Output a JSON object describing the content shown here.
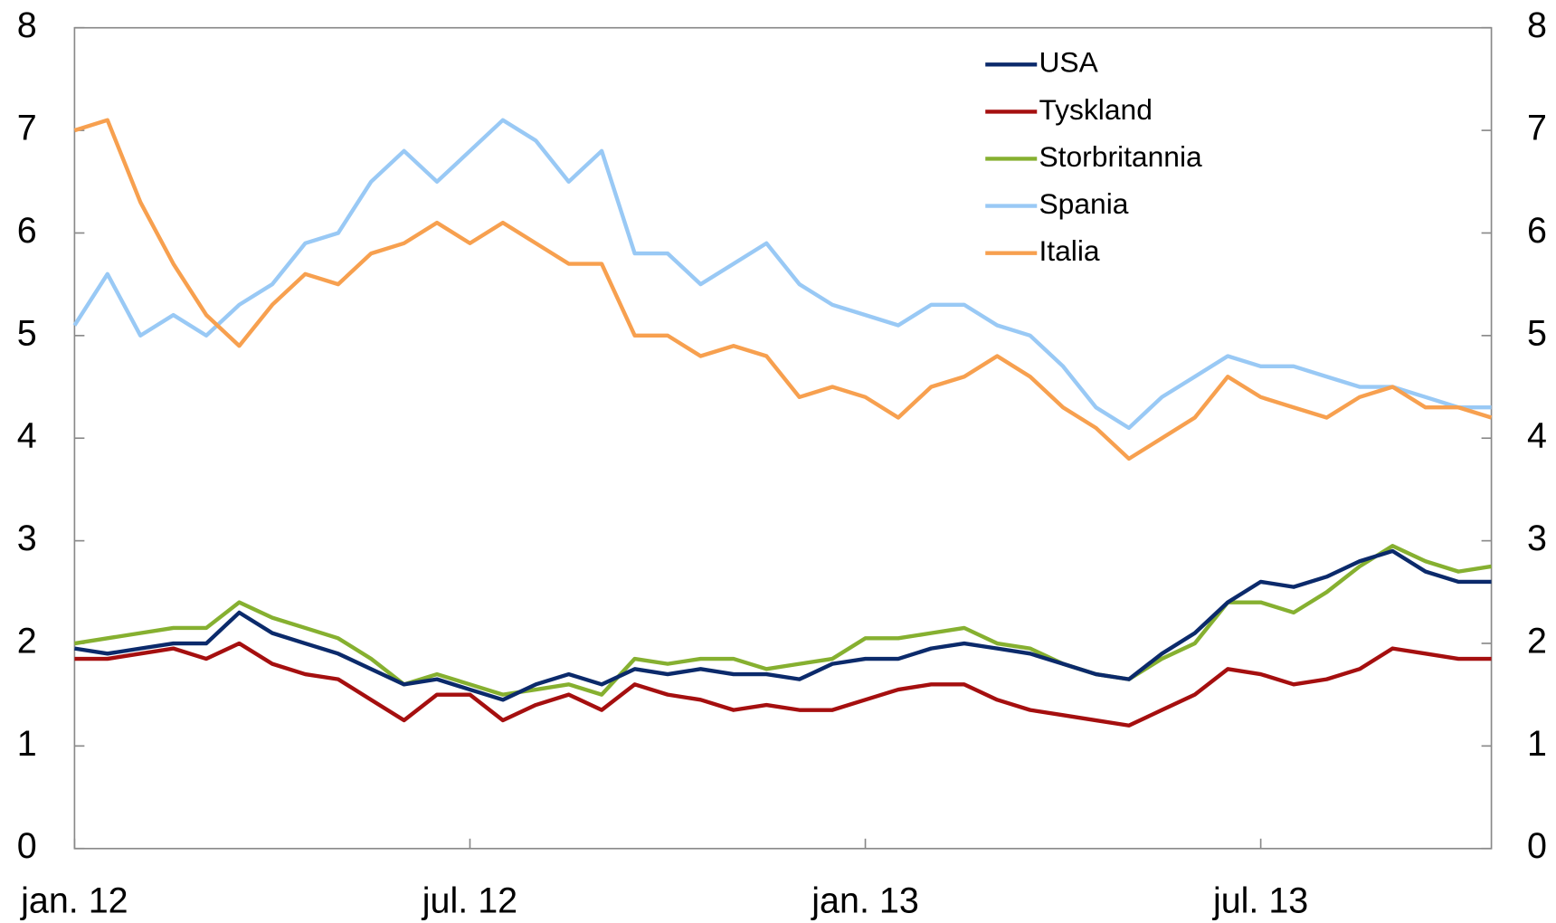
{
  "chart_data": {
    "type": "line",
    "categories": [
      "jan. 12",
      null,
      null,
      null,
      null,
      null,
      null,
      null,
      null,
      null,
      null,
      null,
      "jul. 12",
      null,
      null,
      null,
      null,
      null,
      null,
      null,
      null,
      null,
      null,
      null,
      "jan. 13",
      null,
      null,
      null,
      null,
      null,
      null,
      null,
      null,
      null,
      null,
      null,
      "jul. 13",
      null,
      null,
      null,
      null,
      null,
      null,
      null
    ],
    "ylim": [
      0,
      8
    ],
    "yticks": [
      0,
      1,
      2,
      3,
      4,
      5,
      6,
      7,
      8
    ],
    "series": [
      {
        "name": "USA",
        "color": "#0b2a6b",
        "values": [
          1.95,
          1.9,
          1.95,
          2.0,
          2.0,
          2.3,
          2.1,
          2.0,
          1.9,
          1.75,
          1.6,
          1.65,
          1.55,
          1.45,
          1.6,
          1.7,
          1.6,
          1.75,
          1.7,
          1.75,
          1.7,
          1.7,
          1.65,
          1.8,
          1.85,
          1.85,
          1.95,
          2.0,
          1.95,
          1.9,
          1.8,
          1.7,
          1.65,
          1.9,
          2.1,
          2.4,
          2.6,
          2.55,
          2.65,
          2.8,
          2.9,
          2.7,
          2.6,
          2.6
        ]
      },
      {
        "name": "Tyskland",
        "color": "#a50f0f",
        "values": [
          1.85,
          1.85,
          1.9,
          1.95,
          1.85,
          2.0,
          1.8,
          1.7,
          1.65,
          1.45,
          1.25,
          1.5,
          1.5,
          1.25,
          1.4,
          1.5,
          1.35,
          1.6,
          1.5,
          1.45,
          1.35,
          1.4,
          1.35,
          1.35,
          1.45,
          1.55,
          1.6,
          1.6,
          1.45,
          1.35,
          1.3,
          1.25,
          1.2,
          1.35,
          1.5,
          1.75,
          1.7,
          1.6,
          1.65,
          1.75,
          1.95,
          1.9,
          1.85,
          1.85
        ]
      },
      {
        "name": "Storbritannia",
        "color": "#86b030",
        "values": [
          2.0,
          2.05,
          2.1,
          2.15,
          2.15,
          2.4,
          2.25,
          2.15,
          2.05,
          1.85,
          1.6,
          1.7,
          1.6,
          1.5,
          1.55,
          1.6,
          1.5,
          1.85,
          1.8,
          1.85,
          1.85,
          1.75,
          1.8,
          1.85,
          2.05,
          2.05,
          2.1,
          2.15,
          2.0,
          1.95,
          1.8,
          1.7,
          1.65,
          1.85,
          2.0,
          2.4,
          2.4,
          2.3,
          2.5,
          2.75,
          2.95,
          2.8,
          2.7,
          2.75
        ]
      },
      {
        "name": "Spania",
        "color": "#99c9f5",
        "values": [
          5.1,
          5.6,
          5.0,
          5.2,
          5.0,
          5.3,
          5.5,
          5.9,
          6.0,
          6.5,
          6.8,
          6.5,
          6.8,
          7.1,
          6.9,
          6.5,
          6.8,
          5.8,
          5.8,
          5.5,
          5.7,
          5.9,
          5.5,
          5.3,
          5.2,
          5.1,
          5.3,
          5.3,
          5.1,
          5.0,
          4.7,
          4.3,
          4.1,
          4.4,
          4.6,
          4.8,
          4.7,
          4.7,
          4.6,
          4.5,
          4.5,
          4.4,
          4.3,
          4.3
        ]
      },
      {
        "name": "Italia",
        "color": "#f7a04f",
        "values": [
          7.0,
          7.1,
          6.3,
          5.7,
          5.2,
          4.9,
          5.3,
          5.6,
          5.5,
          5.8,
          5.9,
          6.1,
          5.9,
          6.1,
          5.9,
          5.7,
          5.7,
          5.0,
          5.0,
          4.8,
          4.9,
          4.8,
          4.4,
          4.5,
          4.4,
          4.2,
          4.5,
          4.6,
          4.8,
          4.6,
          4.3,
          4.1,
          3.8,
          4.0,
          4.2,
          4.6,
          4.4,
          4.3,
          4.2,
          4.4,
          4.5,
          4.3,
          4.3,
          4.2
        ]
      }
    ],
    "legend": "upper right"
  }
}
